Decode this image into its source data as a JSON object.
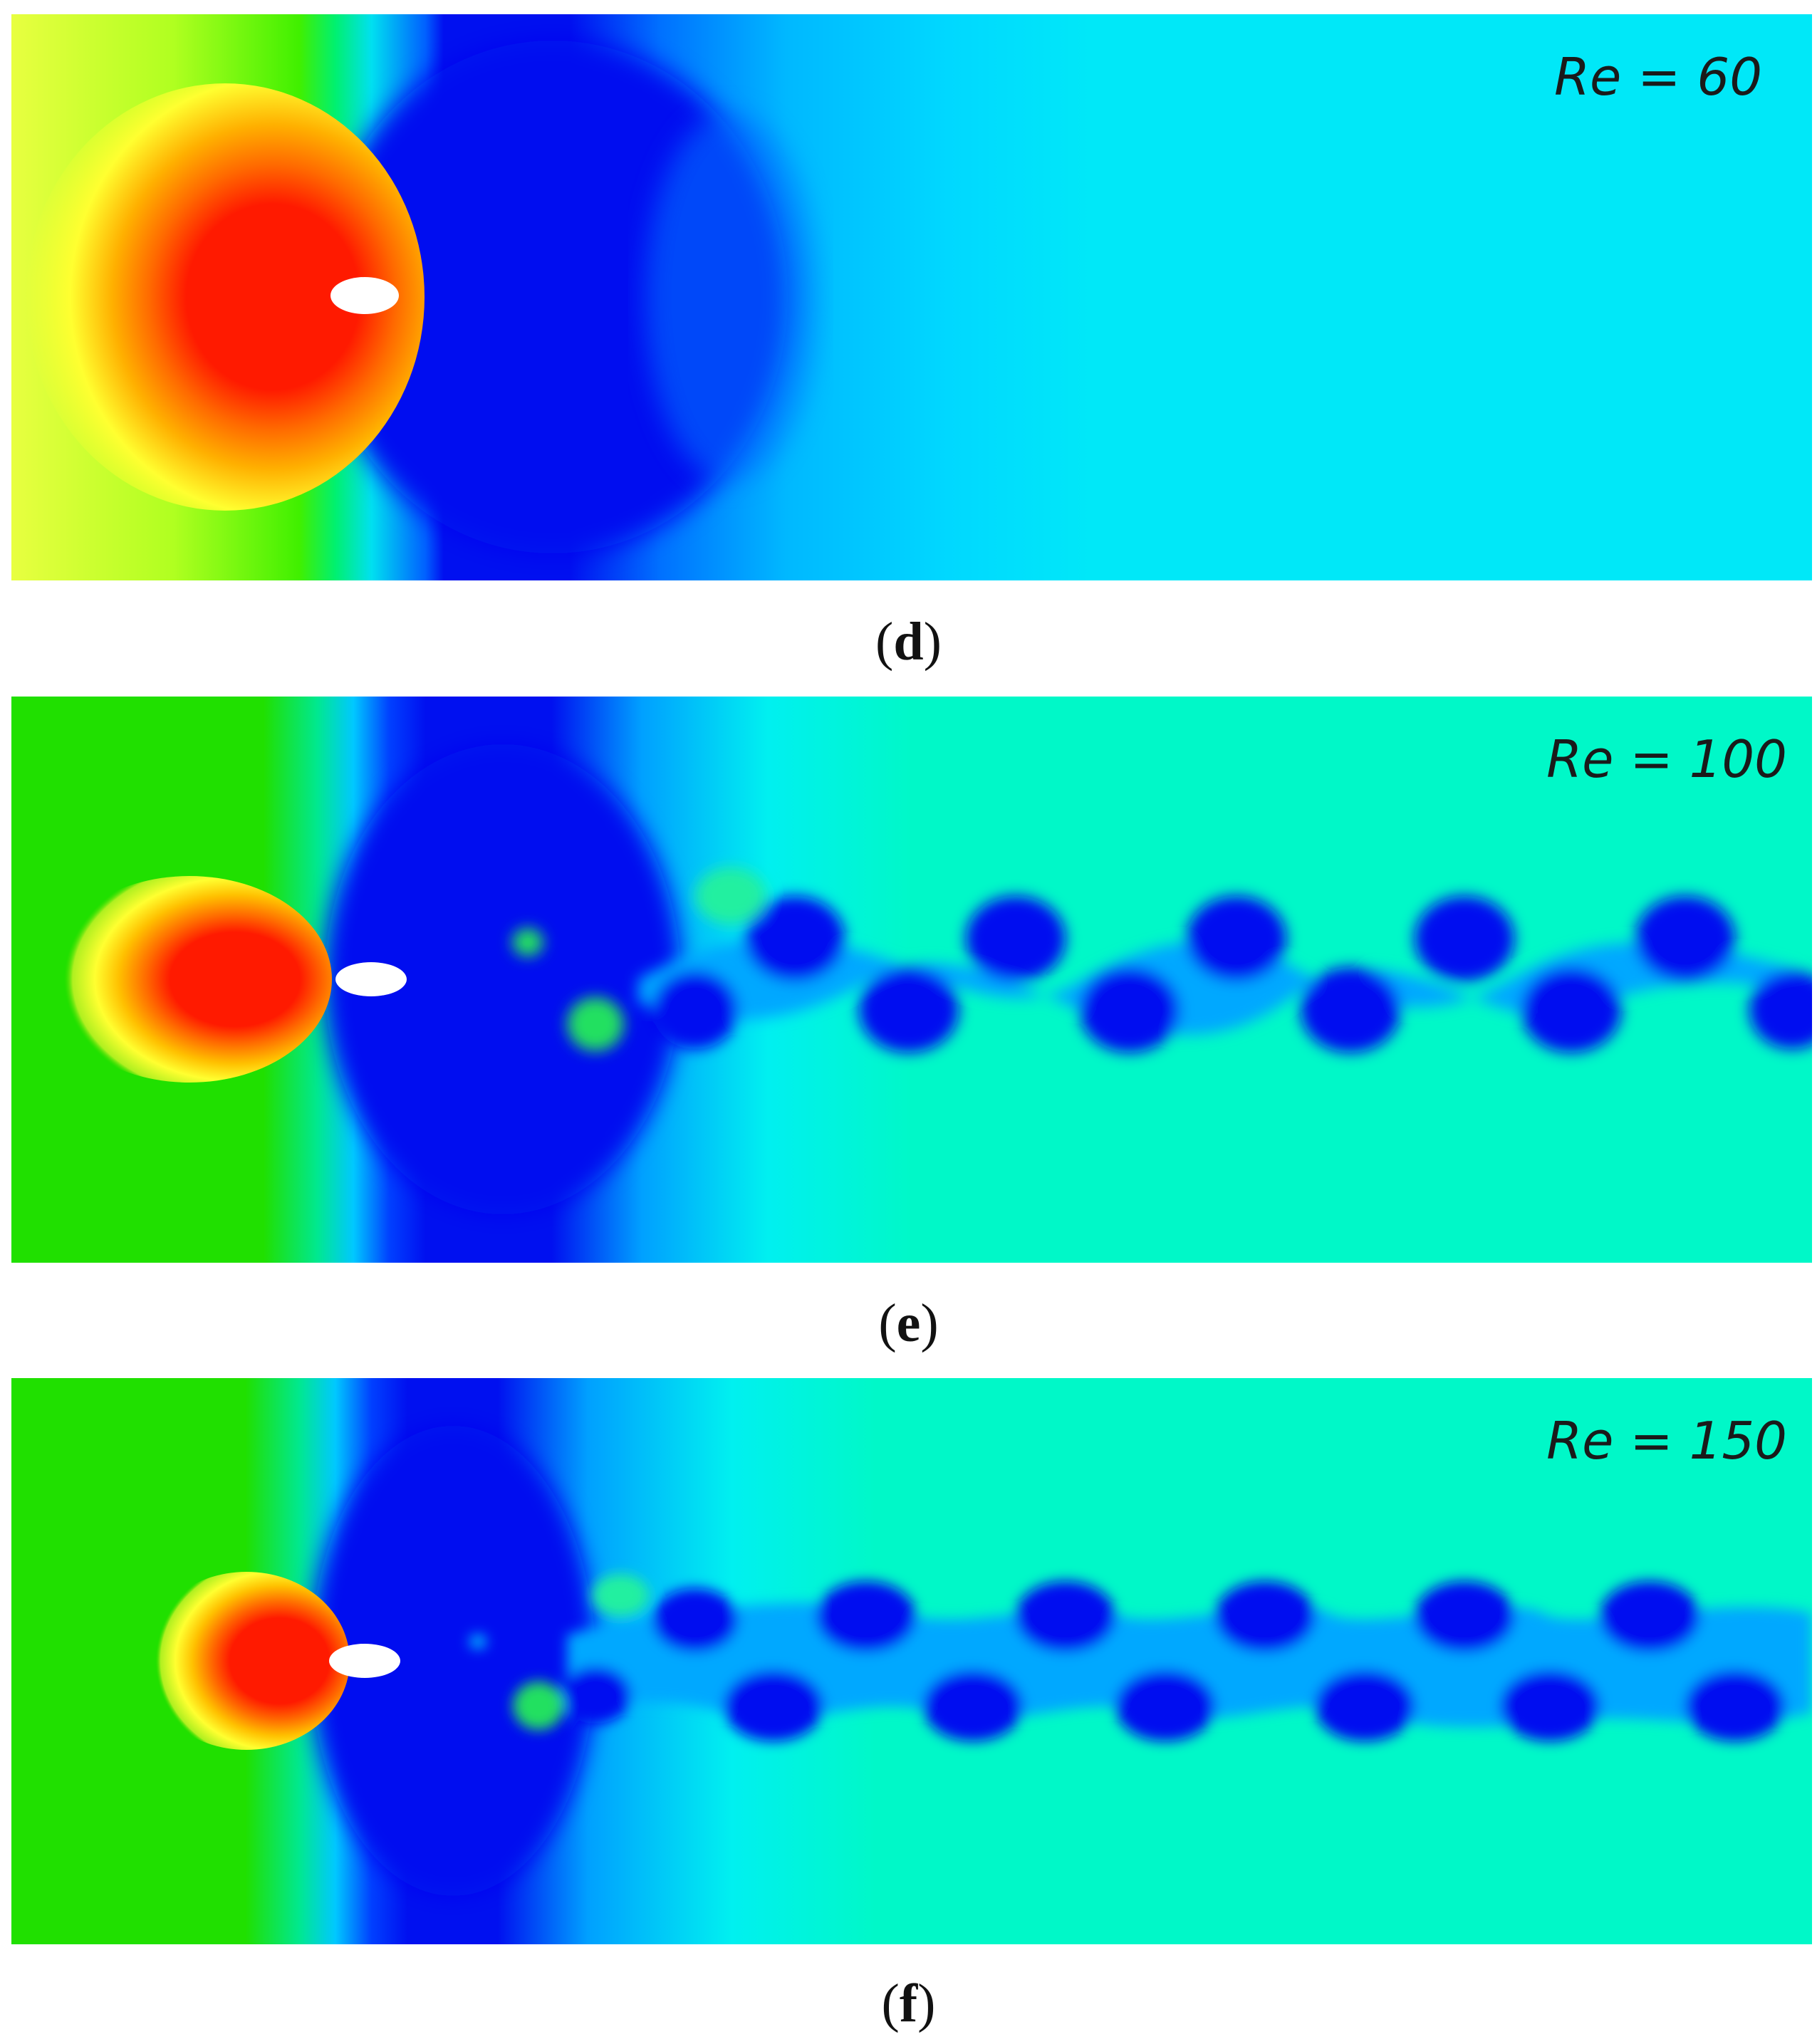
{
  "panels": [
    {
      "id": "d",
      "re_label": "Re = 60",
      "caption_open": "(",
      "caption_letter": "d",
      "caption_close": ")"
    },
    {
      "id": "e",
      "re_label": "Re = 100",
      "caption_open": "(",
      "caption_letter": "e",
      "caption_close": ")"
    },
    {
      "id": "f",
      "re_label": "Re = 150",
      "caption_open": "(",
      "caption_letter": "f",
      "caption_close": ")"
    }
  ],
  "colors": {
    "stagnation_red": "#ff1a00",
    "orange": "#ff8c00",
    "yellow": "#ffff30",
    "green": "#20e000",
    "cyan": "#00e8f8",
    "light_blue": "#00a8ff",
    "wake_blue": "#0010f0",
    "teal": "#00f8c8",
    "body_white": "#ffffff"
  }
}
